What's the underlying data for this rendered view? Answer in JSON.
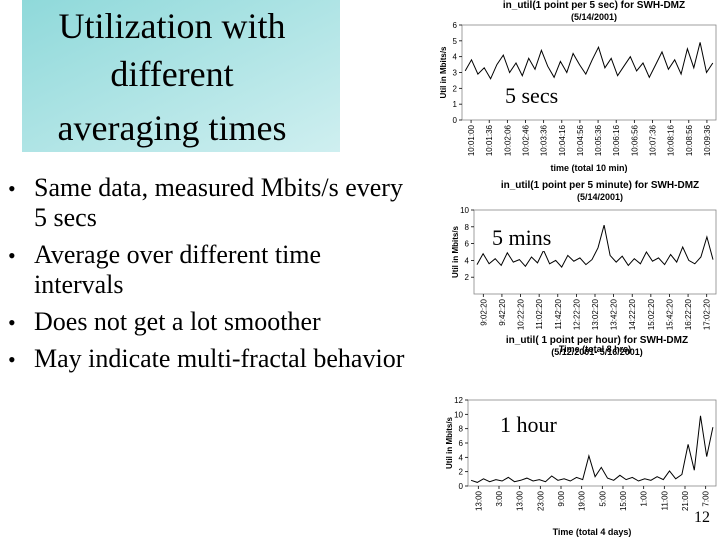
{
  "title": [
    "Utilization with",
    "different",
    "averaging times"
  ],
  "bullets": [
    "Same data, measured Mbits/s every 5 secs",
    "Average over different time intervals",
    "Does not get a lot smoother",
    "May indicate multi-fractal behavior"
  ],
  "page_number": "12",
  "charts": [
    {
      "type": "line",
      "title": "in_util(1 point per 5 sec) for SWH-DMZ",
      "subtitle": "(5/14/2001)",
      "ylabel": "Util in Mbits/s",
      "xlabel": "time (total 10 min)",
      "overlay": "5 secs",
      "ylim": [
        0,
        6
      ],
      "yticks": [
        0,
        1,
        2,
        3,
        4,
        5,
        6
      ],
      "categories": [
        "10:01:00",
        "10:01:36",
        "10:02:06",
        "10:02:46",
        "10:03:36",
        "10:04:16",
        "10:04:56",
        "10:05:36",
        "10:06:16",
        "10:06:56",
        "10:07:36",
        "10:08:16",
        "10:08:56",
        "10:09:36"
      ],
      "values": [
        3.1,
        3.8,
        2.9,
        3.3,
        2.6,
        3.5,
        4.1,
        3.0,
        3.6,
        2.8,
        3.9,
        3.2,
        4.4,
        3.4,
        2.7,
        3.7,
        3.0,
        4.2,
        3.5,
        2.9,
        3.8,
        4.6,
        3.3,
        3.9,
        2.8,
        3.4,
        4.0,
        3.1,
        3.6,
        2.7,
        3.5,
        4.3,
        3.2,
        3.8,
        2.9,
        4.5,
        3.3,
        4.9,
        3.0,
        3.6
      ]
    },
    {
      "type": "line",
      "title": "in_util(1 point per 5 minute) for SWH-DMZ",
      "subtitle": "(5/14/2001)",
      "ylabel": "Util in Mbits/s",
      "xlabel": "Time (total 8 hrs)",
      "overlay": "5 mins",
      "ylim": [
        0,
        10
      ],
      "yticks": [
        2,
        4,
        6,
        8,
        10
      ],
      "categories": [
        "9:02:20",
        "9:42:20",
        "10:22:20",
        "11:02:20",
        "11:42:20",
        "12:22:20",
        "13:02:20",
        "13:42:20",
        "14:22:20",
        "15:02:20",
        "15:42:20",
        "16:22:20",
        "17:02:20"
      ],
      "values": [
        3.5,
        4.8,
        3.6,
        4.2,
        3.4,
        4.9,
        3.8,
        4.1,
        3.3,
        4.4,
        3.7,
        5.2,
        3.6,
        4.0,
        3.2,
        4.6,
        3.9,
        4.3,
        3.5,
        4.1,
        5.5,
        8.2,
        4.6,
        3.8,
        4.5,
        3.4,
        4.2,
        3.6,
        5.0,
        3.9,
        4.3,
        3.5,
        4.7,
        3.8,
        5.6,
        4.0,
        3.6,
        4.4,
        6.8,
        4.1
      ]
    },
    {
      "type": "line",
      "title": "in_util( 1 point per hour) for SWH-DMZ",
      "subtitle": "(5/12/2001- 5/16/2001)",
      "ylabel": "Util in Mbits/s",
      "xlabel": "Time (total 4 days)",
      "overlay": "1 hour",
      "ylim": [
        0,
        12
      ],
      "yticks": [
        0,
        2,
        4,
        6,
        8,
        10,
        12
      ],
      "categories": [
        "13:00",
        "3:00",
        "13:00",
        "23:00",
        "9:00",
        "19:00",
        "5:00",
        "15:00",
        "1:00",
        "11:00",
        "21:00",
        "7:00"
      ],
      "values": [
        0.8,
        0.5,
        1.0,
        0.6,
        0.9,
        0.7,
        1.2,
        0.6,
        0.8,
        1.1,
        0.7,
        0.9,
        0.6,
        1.4,
        0.8,
        1.0,
        0.7,
        1.2,
        0.9,
        4.2,
        1.3,
        2.6,
        1.1,
        0.8,
        1.5,
        0.9,
        1.2,
        0.7,
        1.0,
        0.8,
        1.3,
        0.9,
        2.1,
        1.0,
        1.6,
        5.8,
        2.2,
        9.8,
        4.1,
        8.2
      ]
    }
  ]
}
